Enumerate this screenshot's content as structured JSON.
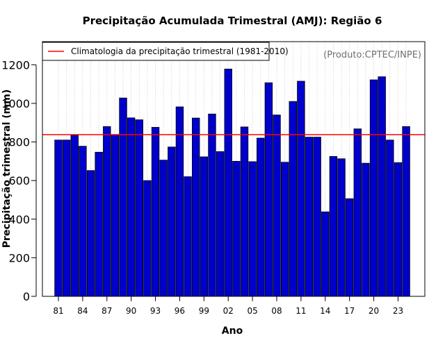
{
  "chart_data": {
    "type": "bar",
    "title": "Precipitação Acumulada Trimestral (AMJ): Região 6",
    "xlabel": "Ano",
    "ylabel": "Precipitação trimestral (mm)",
    "source_note": "(Produto:CPTEC/INPE)",
    "legend": {
      "label": "Climatologia da precipitação trimestral (1981-2010)",
      "position": "top-left",
      "color": "#ff0000"
    },
    "reference_line": {
      "name": "Climatologia",
      "value": 838
    },
    "ylim": [
      0,
      1320
    ],
    "yticks": [
      0,
      200,
      400,
      600,
      800,
      1000,
      1200
    ],
    "ytick_labels": [
      "0",
      "200",
      "400",
      "600",
      "800",
      "1000",
      "1200"
    ],
    "grid": "vertical dotted",
    "bar_color": "#0000cc",
    "categories": [
      "1981",
      "1982",
      "1983",
      "1984",
      "1985",
      "1986",
      "1987",
      "1988",
      "1989",
      "1990",
      "1991",
      "1992",
      "1993",
      "1994",
      "1995",
      "1996",
      "1997",
      "1998",
      "1999",
      "2000",
      "2001",
      "2002",
      "2003",
      "2004",
      "2005",
      "2006",
      "2007",
      "2008",
      "2009",
      "2010",
      "2011",
      "2012",
      "2013",
      "2014",
      "2015",
      "2016",
      "2017",
      "2018",
      "2019",
      "2020",
      "2021",
      "2022",
      "2023",
      "2024"
    ],
    "xtick_labels": [
      {
        "index": 0,
        "label": "81"
      },
      {
        "index": 3,
        "label": "84"
      },
      {
        "index": 6,
        "label": "87"
      },
      {
        "index": 9,
        "label": "90"
      },
      {
        "index": 12,
        "label": "93"
      },
      {
        "index": 15,
        "label": "96"
      },
      {
        "index": 18,
        "label": "99"
      },
      {
        "index": 21,
        "label": "02"
      },
      {
        "index": 24,
        "label": "05"
      },
      {
        "index": 27,
        "label": "08"
      },
      {
        "index": 30,
        "label": "11"
      },
      {
        "index": 33,
        "label": "14"
      },
      {
        "index": 36,
        "label": "17"
      },
      {
        "index": 39,
        "label": "20"
      },
      {
        "index": 42,
        "label": "23"
      }
    ],
    "values": [
      810,
      810,
      835,
      778,
      652,
      747,
      880,
      838,
      1028,
      925,
      915,
      600,
      876,
      706,
      774,
      982,
      620,
      924,
      723,
      945,
      750,
      1178,
      700,
      878,
      698,
      820,
      1107,
      940,
      695,
      1010,
      1115,
      825,
      825,
      438,
      725,
      713,
      506,
      868,
      690,
      1122,
      1138,
      810,
      693,
      880
    ]
  }
}
